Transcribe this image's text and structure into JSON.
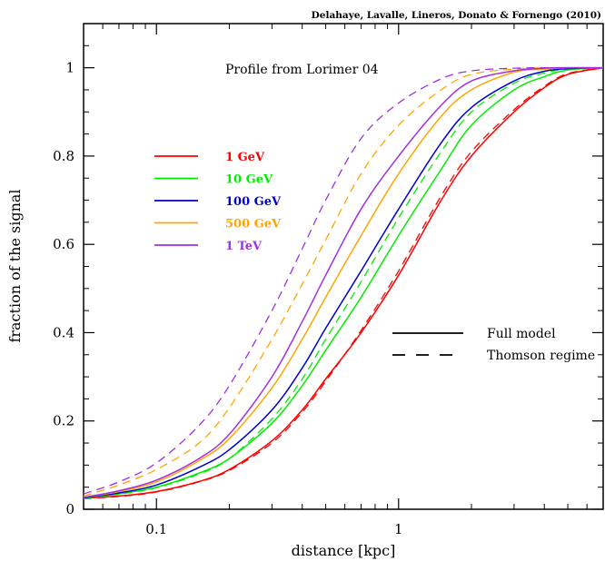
{
  "chart_data": {
    "type": "line",
    "title": "",
    "credit": "Delahaye, Lavalle, Lineros, Donato & Fornengo (2010)",
    "annotation": "Profile from Lorimer 04",
    "xlabel": "distance  [kpc]",
    "ylabel": "fraction of the signal",
    "xscale": "log",
    "xlim": [
      0.05,
      7
    ],
    "ylim": [
      0,
      1.1
    ],
    "x_ticks": [
      {
        "value": 0.1,
        "label": "0.1"
      },
      {
        "value": 1,
        "label": "1"
      }
    ],
    "y_ticks": [
      {
        "value": 0,
        "label": "0"
      },
      {
        "value": 0.2,
        "label": "0.2"
      },
      {
        "value": 0.4,
        "label": "0.4"
      },
      {
        "value": 0.6,
        "label": "0.6"
      },
      {
        "value": 0.8,
        "label": "0.8"
      },
      {
        "value": 1,
        "label": "1"
      }
    ],
    "grid": false,
    "legend_placement": "upper-left",
    "line_styles": [
      {
        "label": "Full model",
        "dash": "solid"
      },
      {
        "label": "Thomson regime",
        "dash": "dashed"
      }
    ],
    "x": [
      0.05,
      0.07,
      0.1,
      0.15,
      0.2,
      0.3,
      0.4,
      0.5,
      0.7,
      1.0,
      1.5,
      2.0,
      3.0,
      4.0,
      5.0,
      7.0
    ],
    "series": [
      {
        "name": "1 GeV",
        "color": "#ff0000",
        "full": [
          0.025,
          0.03,
          0.04,
          0.063,
          0.09,
          0.155,
          0.225,
          0.295,
          0.4,
          0.53,
          0.7,
          0.8,
          0.9,
          0.955,
          0.985,
          1.0
        ],
        "thomson": [
          0.024,
          0.029,
          0.039,
          0.062,
          0.088,
          0.15,
          0.22,
          0.29,
          0.405,
          0.54,
          0.71,
          0.81,
          0.905,
          0.958,
          0.987,
          1.0
        ]
      },
      {
        "name": "10 GeV",
        "color": "#00ee00",
        "full": [
          0.025,
          0.035,
          0.05,
          0.082,
          0.115,
          0.195,
          0.28,
          0.36,
          0.48,
          0.62,
          0.77,
          0.87,
          0.95,
          0.98,
          0.995,
          1.0
        ],
        "thomson": [
          0.024,
          0.034,
          0.049,
          0.08,
          0.115,
          0.205,
          0.295,
          0.385,
          0.515,
          0.66,
          0.81,
          0.9,
          0.965,
          0.988,
          0.997,
          1.0
        ]
      },
      {
        "name": "100 GeV",
        "color": "#0000cc",
        "full": [
          0.026,
          0.037,
          0.055,
          0.095,
          0.135,
          0.225,
          0.32,
          0.41,
          0.54,
          0.68,
          0.83,
          0.91,
          0.97,
          0.992,
          0.998,
          1.0
        ]
      },
      {
        "name": "500 GeV",
        "color": "#ffa500",
        "full": [
          0.027,
          0.04,
          0.062,
          0.11,
          0.16,
          0.275,
          0.385,
          0.48,
          0.62,
          0.76,
          0.89,
          0.95,
          0.99,
          0.997,
          1.0,
          1.0
        ],
        "thomson": [
          0.03,
          0.055,
          0.09,
          0.15,
          0.23,
          0.385,
          0.51,
          0.61,
          0.76,
          0.87,
          0.95,
          0.985,
          0.997,
          1.0,
          1.0,
          1.0
        ]
      },
      {
        "name": "1 TeV",
        "color": "#a030e0",
        "full": [
          0.027,
          0.042,
          0.066,
          0.115,
          0.17,
          0.3,
          0.425,
          0.53,
          0.68,
          0.8,
          0.915,
          0.97,
          0.993,
          0.999,
          1.0,
          1.0
        ],
        "thomson": [
          0.035,
          0.062,
          0.105,
          0.19,
          0.28,
          0.45,
          0.59,
          0.7,
          0.84,
          0.92,
          0.975,
          0.993,
          0.999,
          1.0,
          1.0,
          1.0
        ]
      }
    ]
  }
}
